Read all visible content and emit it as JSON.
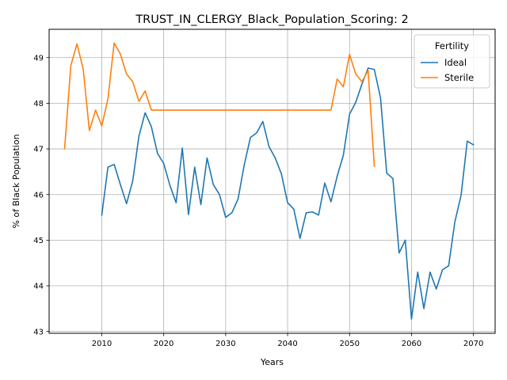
{
  "chart_data": {
    "type": "line",
    "title": "TRUST_IN_CLERGY_Black_Population_Scoring: 2",
    "xlabel": "Years",
    "ylabel": "% of Black Population",
    "xlim": [
      2001.5,
      2073.5
    ],
    "ylim": [
      42.96,
      49.62
    ],
    "xticks": [
      2010,
      2020,
      2030,
      2040,
      2050,
      2060,
      2070
    ],
    "yticks": [
      43,
      44,
      45,
      46,
      47,
      48,
      49
    ],
    "grid": true,
    "legend": {
      "title": "Fertility",
      "placement": "top-right"
    },
    "series": [
      {
        "name": "Ideal",
        "color": "#1f77b4",
        "x": [
          2010,
          2011,
          2012,
          2013,
          2014,
          2015,
          2016,
          2017,
          2018,
          2019,
          2020,
          2021,
          2022,
          2023,
          2024,
          2025,
          2026,
          2027,
          2028,
          2029,
          2030,
          2031,
          2032,
          2033,
          2034,
          2035,
          2036,
          2037,
          2038,
          2039,
          2040,
          2041,
          2042,
          2043,
          2044,
          2045,
          2046,
          2047,
          2048,
          2049,
          2050,
          2051,
          2052,
          2053,
          2054,
          2055,
          2056,
          2057,
          2058,
          2059,
          2060,
          2061,
          2062,
          2063,
          2064,
          2065,
          2066,
          2067,
          2068,
          2069,
          2070
        ],
        "y": [
          45.55,
          46.6,
          46.66,
          46.22,
          45.8,
          46.3,
          47.28,
          47.79,
          47.49,
          46.9,
          46.68,
          46.2,
          45.82,
          47.02,
          45.56,
          46.6,
          45.78,
          46.8,
          46.22,
          46.0,
          45.5,
          45.6,
          45.9,
          46.65,
          47.25,
          47.35,
          47.6,
          47.05,
          46.8,
          46.45,
          45.82,
          45.68,
          45.04,
          45.6,
          45.62,
          45.55,
          46.25,
          45.84,
          46.4,
          46.86,
          47.76,
          48.02,
          48.42,
          48.77,
          48.74,
          48.12,
          46.47,
          46.35,
          44.72,
          45.0,
          43.27,
          44.3,
          43.5,
          44.3,
          43.93,
          44.35,
          44.44,
          45.4,
          45.98,
          47.17,
          47.09
        ]
      },
      {
        "name": "Sterile",
        "color": "#ff7f0e",
        "x": [
          2004,
          2005,
          2006,
          2007,
          2008,
          2009,
          2010,
          2011,
          2012,
          2013,
          2014,
          2015,
          2016,
          2017,
          2018,
          2019,
          2020,
          2021,
          2022,
          2023,
          2024,
          2025,
          2026,
          2027,
          2028,
          2029,
          2030,
          2031,
          2032,
          2033,
          2034,
          2035,
          2036,
          2037,
          2038,
          2039,
          2040,
          2041,
          2042,
          2043,
          2044,
          2045,
          2046,
          2047,
          2048,
          2049,
          2050,
          2051,
          2052,
          2053,
          2054
        ],
        "y": [
          47.0,
          48.82,
          49.3,
          48.75,
          47.4,
          47.85,
          47.5,
          48.1,
          49.32,
          49.08,
          48.64,
          48.47,
          48.04,
          48.27,
          47.85,
          47.85,
          47.85,
          47.85,
          47.85,
          47.85,
          47.85,
          47.85,
          47.85,
          47.85,
          47.85,
          47.85,
          47.85,
          47.85,
          47.85,
          47.85,
          47.85,
          47.85,
          47.85,
          47.85,
          47.85,
          47.85,
          47.85,
          47.85,
          47.85,
          47.85,
          47.85,
          47.85,
          47.85,
          47.85,
          48.53,
          48.36,
          49.07,
          48.64,
          48.47,
          48.72,
          46.62
        ]
      }
    ]
  }
}
